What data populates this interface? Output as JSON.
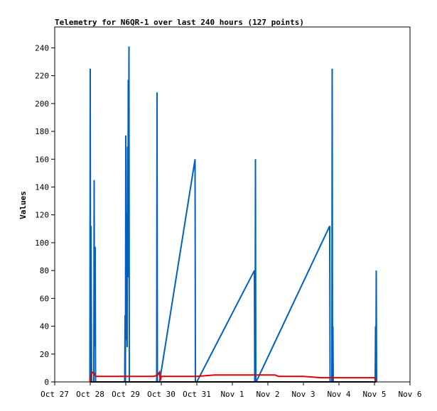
{
  "chart_data": {
    "type": "line",
    "title": "Telemetry for N6QR-1 over last 240 hours (127 points)",
    "xlabel": "",
    "ylabel": "Values",
    "ylim": [
      0,
      255
    ],
    "yticks": [
      0,
      20,
      40,
      60,
      80,
      100,
      120,
      140,
      160,
      180,
      200,
      220,
      240
    ],
    "xlim": [
      0,
      10
    ],
    "xtick_labels": [
      "Oct 27",
      "Oct 28",
      "Oct 29",
      "Oct 30",
      "Oct 31",
      "Nov 1",
      "Nov 2",
      "Nov 3",
      "Nov 4",
      "Nov 5",
      "Nov 6"
    ],
    "grid": false,
    "legend": "none",
    "series": [
      {
        "color": "#0060c0",
        "points": [
          [
            0.99,
            0
          ],
          [
            1.0,
            225
          ],
          [
            1.01,
            0
          ],
          [
            1.02,
            112
          ],
          [
            1.04,
            0
          ],
          [
            1.1,
            0
          ],
          [
            1.11,
            145
          ],
          [
            1.12,
            25
          ],
          [
            1.14,
            97
          ],
          [
            1.15,
            0
          ],
          [
            1.97,
            0
          ],
          [
            1.98,
            48
          ],
          [
            1.99,
            0
          ],
          [
            2.0,
            177
          ],
          [
            2.01,
            30
          ],
          [
            2.03,
            121
          ],
          [
            2.04,
            25
          ],
          [
            2.05,
            169
          ],
          [
            2.06,
            75
          ],
          [
            2.07,
            217
          ],
          [
            2.08,
            90
          ],
          [
            2.09,
            241
          ],
          [
            2.1,
            0
          ],
          [
            2.87,
            0
          ],
          [
            2.88,
            208
          ],
          [
            2.89,
            0
          ],
          [
            2.95,
            0
          ],
          [
            3.95,
            160
          ],
          [
            3.96,
            0
          ],
          [
            4.0,
            0
          ],
          [
            5.62,
            80
          ],
          [
            5.63,
            0
          ],
          [
            5.64,
            0
          ],
          [
            5.65,
            160
          ],
          [
            5.66,
            0
          ],
          [
            5.67,
            0
          ],
          [
            7.74,
            112
          ],
          [
            7.75,
            0
          ],
          [
            7.8,
            0
          ],
          [
            7.81,
            225
          ],
          [
            7.82,
            0
          ],
          [
            7.83,
            40
          ],
          [
            7.84,
            0
          ],
          [
            9.02,
            0
          ],
          [
            9.03,
            40
          ],
          [
            9.04,
            0
          ],
          [
            9.05,
            80
          ],
          [
            9.06,
            0
          ]
        ]
      },
      {
        "color": "#e00000",
        "points": [
          [
            0.99,
            0
          ],
          [
            1.02,
            5
          ],
          [
            1.06,
            7
          ],
          [
            1.12,
            6
          ],
          [
            1.15,
            4
          ],
          [
            1.5,
            4
          ],
          [
            2.0,
            4
          ],
          [
            2.5,
            4
          ],
          [
            2.8,
            4
          ],
          [
            2.9,
            5
          ],
          [
            2.95,
            7
          ],
          [
            2.97,
            1
          ],
          [
            3.0,
            4
          ],
          [
            3.5,
            4
          ],
          [
            4.0,
            4
          ],
          [
            4.5,
            5
          ],
          [
            5.0,
            5
          ],
          [
            5.6,
            5
          ],
          [
            6.2,
            5
          ],
          [
            6.3,
            4
          ],
          [
            7.0,
            4
          ],
          [
            7.5,
            3
          ],
          [
            8.5,
            3
          ],
          [
            9.0,
            3
          ],
          [
            9.05,
            0
          ]
        ]
      },
      {
        "color": "#000000",
        "points": [
          [
            0.99,
            0
          ],
          [
            9.05,
            0
          ]
        ]
      }
    ]
  }
}
